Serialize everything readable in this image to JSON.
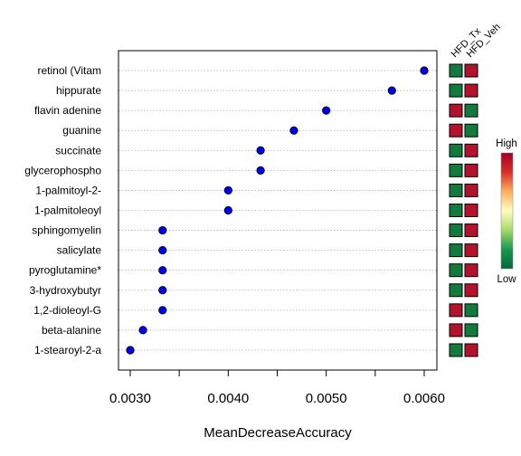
{
  "chart_data": {
    "type": "scatter",
    "xlabel": "MeanDecreaseAccuracy",
    "xlim": [
      0.0029,
      0.0061
    ],
    "xticks": [
      0.003,
      0.004,
      0.005,
      0.006
    ],
    "xtick_labels": [
      "0.0030",
      "0.0040",
      "0.0050",
      "0.0060"
    ],
    "categories": [
      "retinol (Vitam",
      "hippurate",
      "flavin adenine",
      "guanine",
      "succinate",
      "glycerophospho",
      "1-palmitoyl-2-",
      "1-palmitoleoyl",
      "sphingomyelin",
      "salicylate",
      "pyroglutamine*",
      "3-hydroxybutyr",
      "1,2-dioleoyl-G",
      "beta-alanine",
      "1-stearoyl-2-a"
    ],
    "values": [
      0.006,
      0.00567,
      0.005,
      0.00467,
      0.00433,
      0.00433,
      0.004,
      0.004,
      0.00333,
      0.00333,
      0.00333,
      0.00333,
      0.00333,
      0.00313,
      0.003
    ],
    "point_color": "#0000ee",
    "heatmap": {
      "columns": [
        "HFD_Tx",
        "HFD_Veh"
      ],
      "levels": [
        [
          "low",
          "high"
        ],
        [
          "low",
          "high"
        ],
        [
          "high",
          "low"
        ],
        [
          "high",
          "low"
        ],
        [
          "low",
          "high"
        ],
        [
          "low",
          "high"
        ],
        [
          "low",
          "high"
        ],
        [
          "low",
          "high"
        ],
        [
          "low",
          "high"
        ],
        [
          "low",
          "high"
        ],
        [
          "low",
          "high"
        ],
        [
          "low",
          "high"
        ],
        [
          "high",
          "low"
        ],
        [
          "high",
          "low"
        ],
        [
          "low",
          "high"
        ]
      ],
      "colors": {
        "high": "#b2122b",
        "low": "#137a3d"
      }
    },
    "legend": {
      "high_label": "High",
      "low_label": "Low",
      "gradient": [
        "#a50026",
        "#d73027",
        "#fdae61",
        "#ffffbf",
        "#a6d96a",
        "#1a9850",
        "#006837"
      ]
    },
    "grid": "horizontal dotted"
  }
}
